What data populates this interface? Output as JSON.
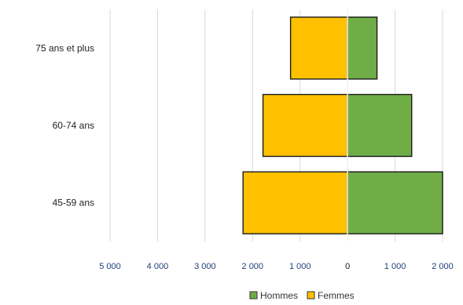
{
  "chart_data": {
    "type": "bar",
    "orientation": "horizontal",
    "layout": "population-pyramid",
    "categories": [
      "45-59 ans",
      "60-74 ans",
      "75 ans et plus"
    ],
    "series": [
      {
        "name": "Hommes",
        "values": [
          2000,
          1350,
          620
        ],
        "color": "#70ad47",
        "side": "right"
      },
      {
        "name": "Femmes",
        "values": [
          2200,
          1780,
          1200
        ],
        "color": "#ffc000",
        "side": "left"
      }
    ],
    "x_ticks": [
      {
        "value": -5000,
        "label": "5 000"
      },
      {
        "value": -4000,
        "label": "4 000"
      },
      {
        "value": -3000,
        "label": "3 000"
      },
      {
        "value": -2000,
        "label": "2 000"
      },
      {
        "value": -1000,
        "label": "1 000"
      },
      {
        "value": 0,
        "label": "0"
      },
      {
        "value": 1000,
        "label": "1 000"
      },
      {
        "value": 2000,
        "label": "2 000"
      }
    ],
    "xlim": [
      -5000,
      2000
    ],
    "grid": "vertical",
    "legend_position": "bottom",
    "title": "",
    "xlabel": "",
    "ylabel": ""
  }
}
